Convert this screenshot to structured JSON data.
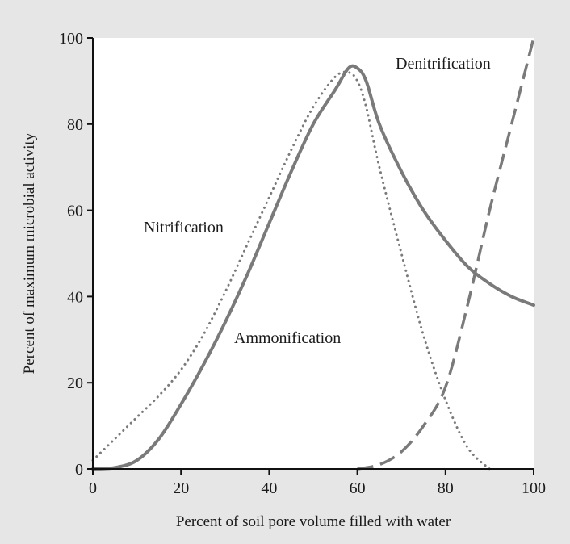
{
  "chart_data": {
    "type": "line",
    "title": "",
    "xlabel": "Percent of soil pore volume filled with water",
    "ylabel": "Percent of maximum microbial activity",
    "xlim": [
      0,
      100
    ],
    "ylim": [
      0,
      100
    ],
    "x_ticks": [
      0,
      20,
      40,
      60,
      80,
      100
    ],
    "y_ticks": [
      0,
      20,
      40,
      60,
      80,
      100
    ],
    "grid": false,
    "legend": "none",
    "series": [
      {
        "name": "Ammonification",
        "style": "solid",
        "color": "#7a7a7a",
        "x": [
          0,
          5,
          10,
          15,
          20,
          25,
          30,
          35,
          40,
          45,
          50,
          55,
          58,
          60,
          62,
          65,
          70,
          75,
          80,
          85,
          90,
          95,
          100
        ],
        "y": [
          0,
          0.3,
          2,
          7,
          15,
          24,
          34,
          45,
          57,
          69,
          80,
          88,
          93,
          93,
          90,
          80,
          69,
          60,
          53,
          47,
          43,
          40,
          38
        ]
      },
      {
        "name": "Nitrification",
        "style": "dotted",
        "color": "#7a7a7a",
        "x": [
          0,
          5,
          10,
          15,
          20,
          25,
          30,
          35,
          40,
          45,
          50,
          55,
          58,
          60,
          62,
          65,
          70,
          75,
          80,
          85,
          90
        ],
        "y": [
          2,
          7,
          12,
          17,
          23,
          31,
          41,
          52,
          63,
          74,
          84,
          91,
          92,
          90,
          84,
          70,
          50,
          31,
          16,
          5,
          0
        ]
      },
      {
        "name": "Denitrification",
        "style": "dashed",
        "color": "#7a7a7a",
        "x": [
          60,
          65,
          70,
          75,
          80,
          85,
          90,
          95,
          100
        ],
        "y": [
          0,
          1,
          4,
          10,
          19,
          38,
          60,
          80,
          100
        ]
      }
    ]
  }
}
